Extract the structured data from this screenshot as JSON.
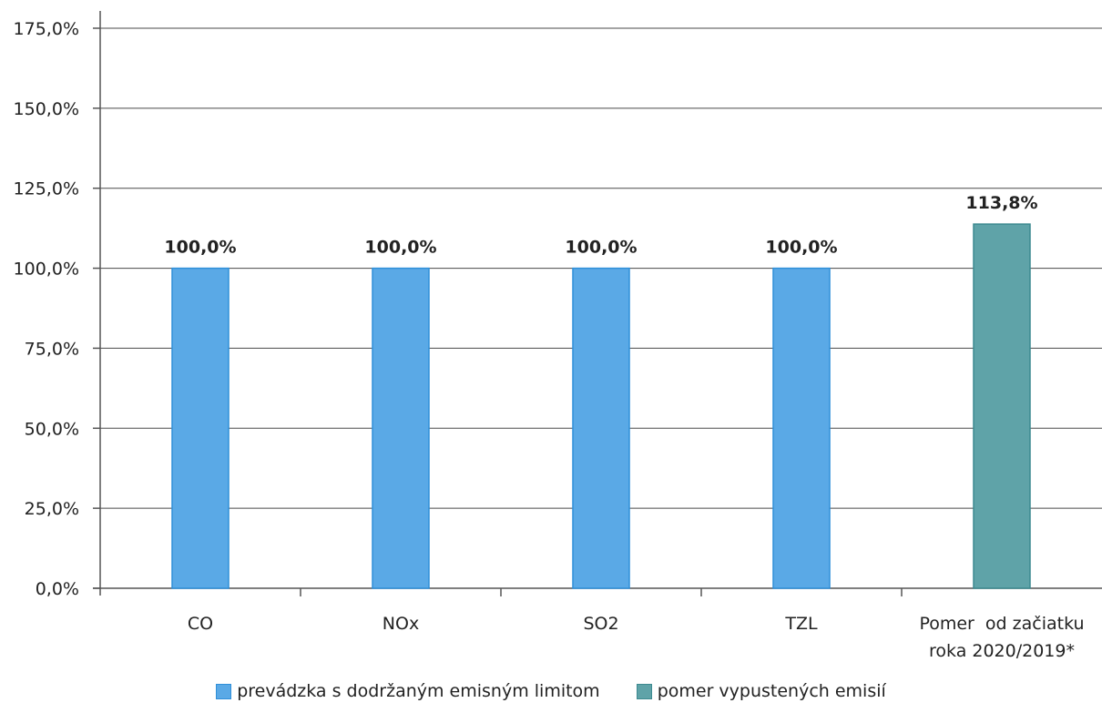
{
  "chart_data": {
    "type": "bar",
    "title": "",
    "xlabel": "",
    "ylabel": "",
    "ylim": [
      0,
      175
    ],
    "y_ticks": [
      "0,0%",
      "25,0%",
      "50,0%",
      "75,0%",
      "100,0%",
      "125,0%",
      "150,0%",
      "175,0%"
    ],
    "y_tick_values": [
      0,
      25,
      50,
      75,
      100,
      125,
      150,
      175
    ],
    "grid": true,
    "legend_position": "bottom",
    "categories": [
      [
        "CO"
      ],
      [
        "NOx"
      ],
      [
        "SO2"
      ],
      [
        "TZL"
      ],
      [
        "Pomer  od začiatku",
        "roka 2020/2019*"
      ]
    ],
    "values": [
      100.0,
      100.0,
      100.0,
      100.0,
      113.8
    ],
    "data_labels": [
      "100,0%",
      "100,0%",
      "100,0%",
      "100,0%",
      "113,8%"
    ],
    "bar_series": [
      0,
      0,
      0,
      0,
      1
    ],
    "series": [
      {
        "name": "prevádzka s dodržaným emisným limitom",
        "color": "#5aa9e6",
        "stroke": "#2f8fd9"
      },
      {
        "name": "pomer vypustených emisií",
        "color": "#5fa3a8",
        "stroke": "#3d8a90"
      }
    ]
  }
}
